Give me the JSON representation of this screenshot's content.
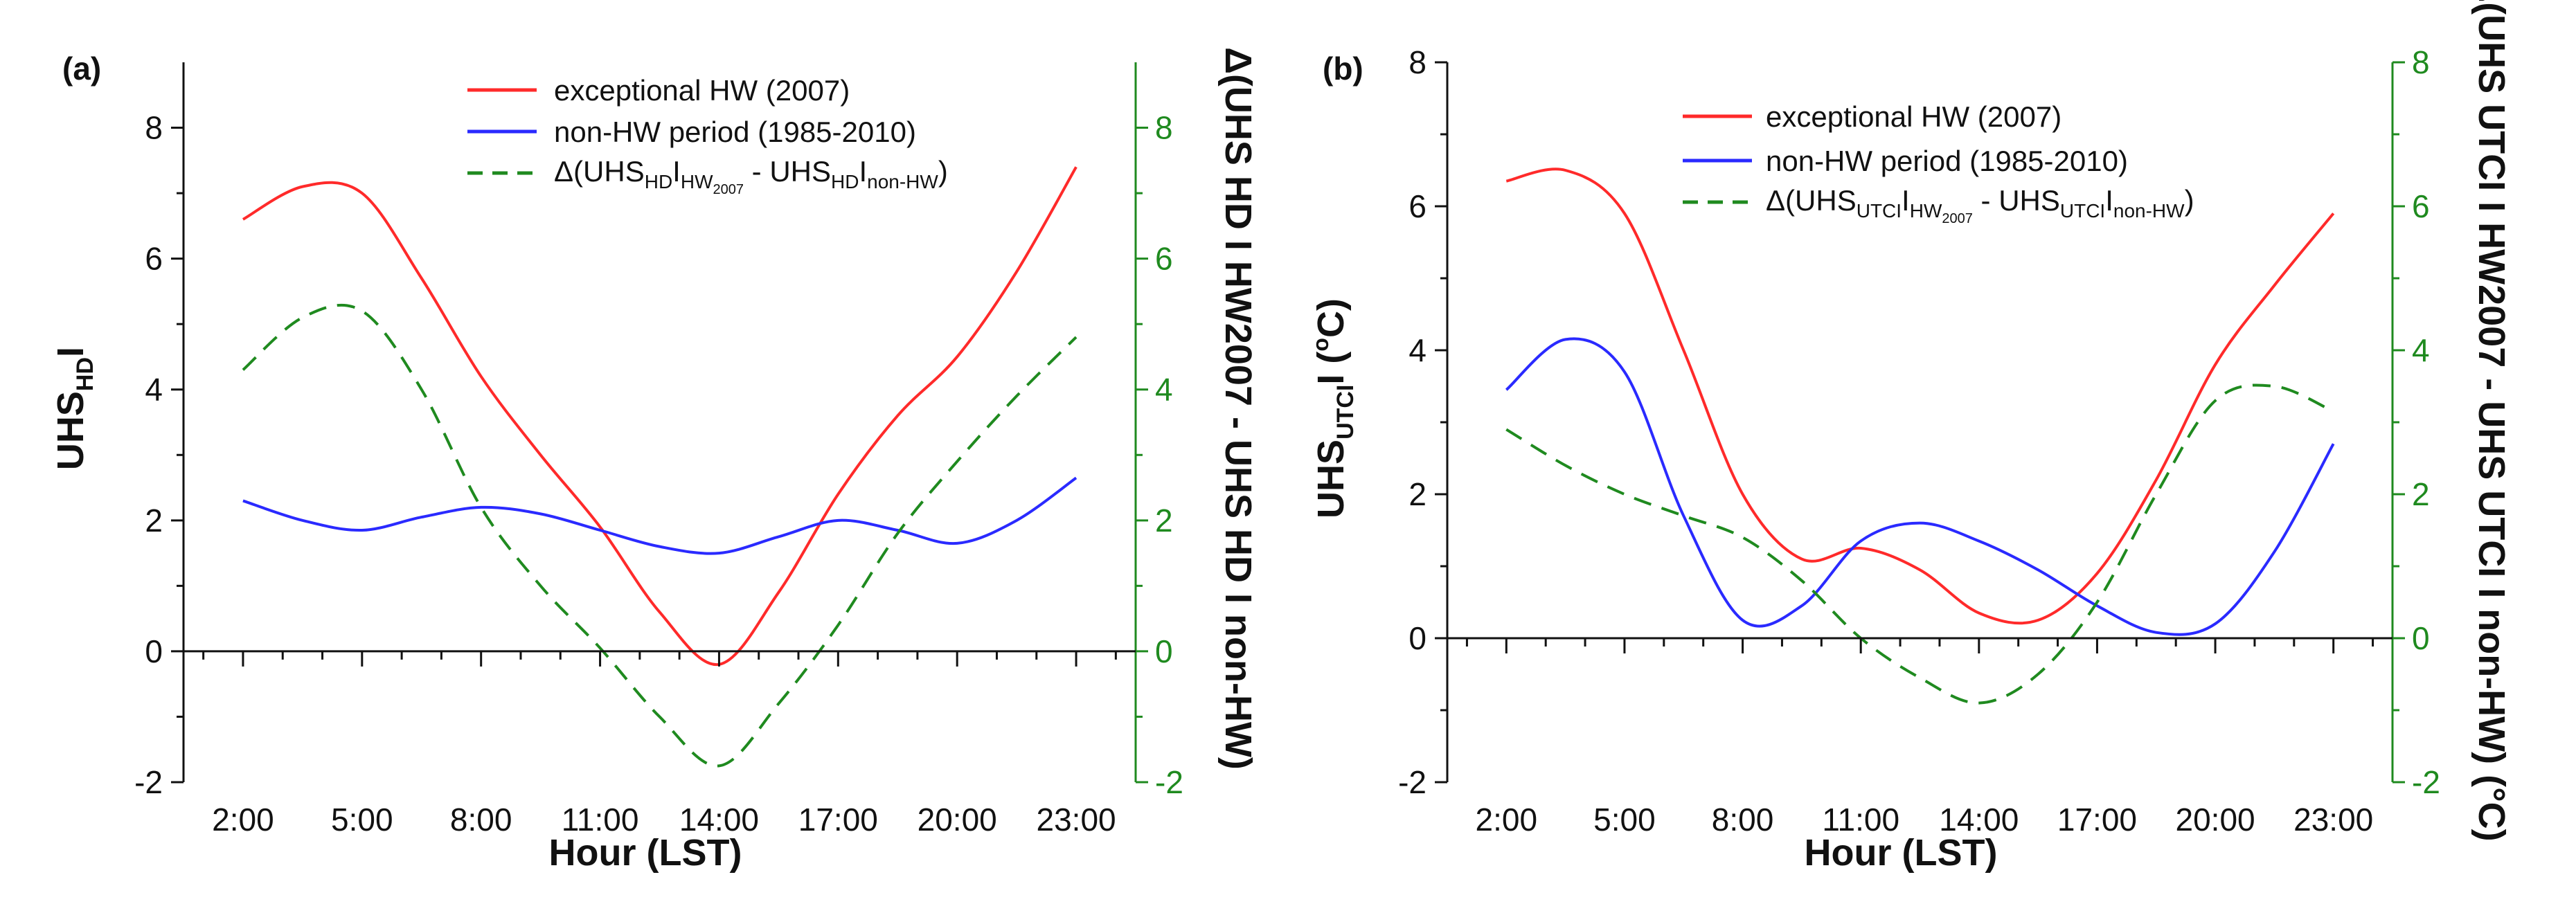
{
  "colors": {
    "hw": "#ff2a2a",
    "nonhw": "#2a2aff",
    "delta": "#1f8a1f",
    "axis": "#111111"
  },
  "chart_data": [
    {
      "panel": "(a)",
      "type": "line",
      "xlabel": "Hour (LST)",
      "ylabel_left": {
        "main": "UHS",
        "sub": "HD",
        "tail": "I"
      },
      "ylabel_right": {
        "text": "Δ(UHS HD I HW2007 - UHS HD I non-HW)"
      },
      "x_tick_labels": [
        "2:00",
        "5:00",
        "8:00",
        "11:00",
        "14:00",
        "17:00",
        "20:00",
        "23:00"
      ],
      "x_tick_hours": [
        2,
        5,
        8,
        11,
        14,
        17,
        20,
        23
      ],
      "xlim": [
        0.5,
        24.5
      ],
      "ylim_left": [
        -2,
        9
      ],
      "ylim_right": [
        -2,
        9
      ],
      "yticks_left": [
        -2,
        0,
        2,
        4,
        6,
        8
      ],
      "yticks_right": [
        -2,
        0,
        2,
        4,
        6,
        8
      ],
      "series": [
        {
          "name": "exceptional HW (2007)",
          "axis": "left",
          "color_key": "hw",
          "x": [
            2,
            3.5,
            5,
            6.5,
            8,
            9.5,
            11,
            12.5,
            14,
            15.5,
            17,
            18.5,
            20,
            21.5,
            23
          ],
          "y": [
            6.6,
            7.1,
            7.0,
            5.7,
            4.2,
            3.0,
            1.9,
            0.6,
            -0.2,
            0.9,
            2.4,
            3.6,
            4.5,
            5.8,
            7.4
          ]
        },
        {
          "name": "non-HW period (1985-2010)",
          "axis": "left",
          "color_key": "nonhw",
          "x": [
            2,
            3.5,
            5,
            6.5,
            8,
            9.5,
            11,
            12.5,
            14,
            15.5,
            17,
            18.5,
            20,
            21.5,
            23
          ],
          "y": [
            2.3,
            2.0,
            1.85,
            2.05,
            2.2,
            2.1,
            1.85,
            1.6,
            1.5,
            1.75,
            2.0,
            1.85,
            1.65,
            2.0,
            2.65
          ]
        },
        {
          "name": "Δ(UHS HD I HW2007 - UHS HD I non-HW)",
          "axis": "right",
          "color_key": "delta",
          "dashed": true,
          "x": [
            2,
            3.5,
            5,
            6.5,
            8,
            9.5,
            11,
            12.5,
            14,
            15.5,
            17,
            18.5,
            20,
            21.5,
            23
          ],
          "y": [
            4.3,
            5.1,
            5.2,
            4.0,
            2.2,
            1.0,
            0.05,
            -1.0,
            -1.75,
            -0.8,
            0.4,
            1.8,
            2.9,
            3.9,
            4.8
          ]
        }
      ],
      "legend": [
        {
          "label": "exceptional HW (2007)"
        },
        {
          "label": "non-HW period (1985-2010)"
        },
        {
          "main": "Δ(UHS",
          "sub1": "HD",
          "mid1": "I",
          "sub2": "HW",
          "sub3": "2007",
          "mid2": " - UHS",
          "sub4": "HD",
          "mid3": "I",
          "sub5": "non-HW",
          "end": ")"
        }
      ]
    },
    {
      "panel": "(b)",
      "type": "line",
      "xlabel": "Hour (LST)",
      "ylabel_left": {
        "main": "UHS",
        "sub": "UTCI",
        "tail": "I (",
        "deg": "o",
        "unit": "C)"
      },
      "ylabel_right": {
        "text": "Δ(UHS UTCI I HW2007 - UHS UTCI I non-HW) (°C)"
      },
      "x_tick_labels": [
        "2:00",
        "5:00",
        "8:00",
        "11:00",
        "14:00",
        "17:00",
        "20:00",
        "23:00"
      ],
      "x_tick_hours": [
        2,
        5,
        8,
        11,
        14,
        17,
        20,
        23
      ],
      "xlim": [
        0.5,
        24.5
      ],
      "ylim_left": [
        -2,
        8
      ],
      "ylim_right": [
        -2,
        8
      ],
      "yticks_left": [
        -2,
        0,
        2,
        4,
        6,
        8
      ],
      "yticks_right": [
        -2,
        0,
        2,
        4,
        6,
        8
      ],
      "series": [
        {
          "name": "exceptional HW (2007)",
          "axis": "left",
          "color_key": "hw",
          "x": [
            2,
            3.5,
            5,
            6.5,
            8,
            9.5,
            11,
            12.5,
            14,
            15.5,
            17,
            18.5,
            20,
            21.5,
            23
          ],
          "y": [
            6.35,
            6.5,
            5.9,
            4.0,
            2.0,
            1.1,
            1.25,
            0.95,
            0.35,
            0.25,
            0.9,
            2.2,
            3.8,
            4.9,
            5.9
          ]
        },
        {
          "name": "non-HW period (1985-2010)",
          "axis": "left",
          "color_key": "nonhw",
          "x": [
            2,
            3.5,
            5,
            6.5,
            8,
            9.5,
            11,
            12.5,
            14,
            15.5,
            17,
            18.5,
            20,
            21.5,
            23
          ],
          "y": [
            3.45,
            4.15,
            3.7,
            1.7,
            0.25,
            0.45,
            1.35,
            1.6,
            1.35,
            0.95,
            0.45,
            0.08,
            0.2,
            1.2,
            2.7
          ]
        },
        {
          "name": "Δ(UHS UTCI I HW2007 - UHS UTCI I non-HW)",
          "axis": "right",
          "color_key": "delta",
          "dashed": true,
          "x": [
            2,
            3.5,
            5,
            6.5,
            8,
            9.5,
            11,
            12.5,
            14,
            15.5,
            17,
            18.5,
            20,
            21.5,
            23
          ],
          "y": [
            2.9,
            2.4,
            2.0,
            1.7,
            1.4,
            0.8,
            0.0,
            -0.55,
            -0.9,
            -0.5,
            0.5,
            2.0,
            3.3,
            3.5,
            3.15
          ]
        }
      ],
      "legend": [
        {
          "label": "exceptional HW (2007)"
        },
        {
          "label": "non-HW period (1985-2010)"
        },
        {
          "main": "Δ(UHS",
          "sub1": "UTCI",
          "mid1": "I",
          "sub2": "HW",
          "sub3": "2007",
          "mid2": " - UHS",
          "sub4": "UTCI",
          "mid3": "I",
          "sub5": "non-HW",
          "end": ")"
        }
      ]
    }
  ]
}
